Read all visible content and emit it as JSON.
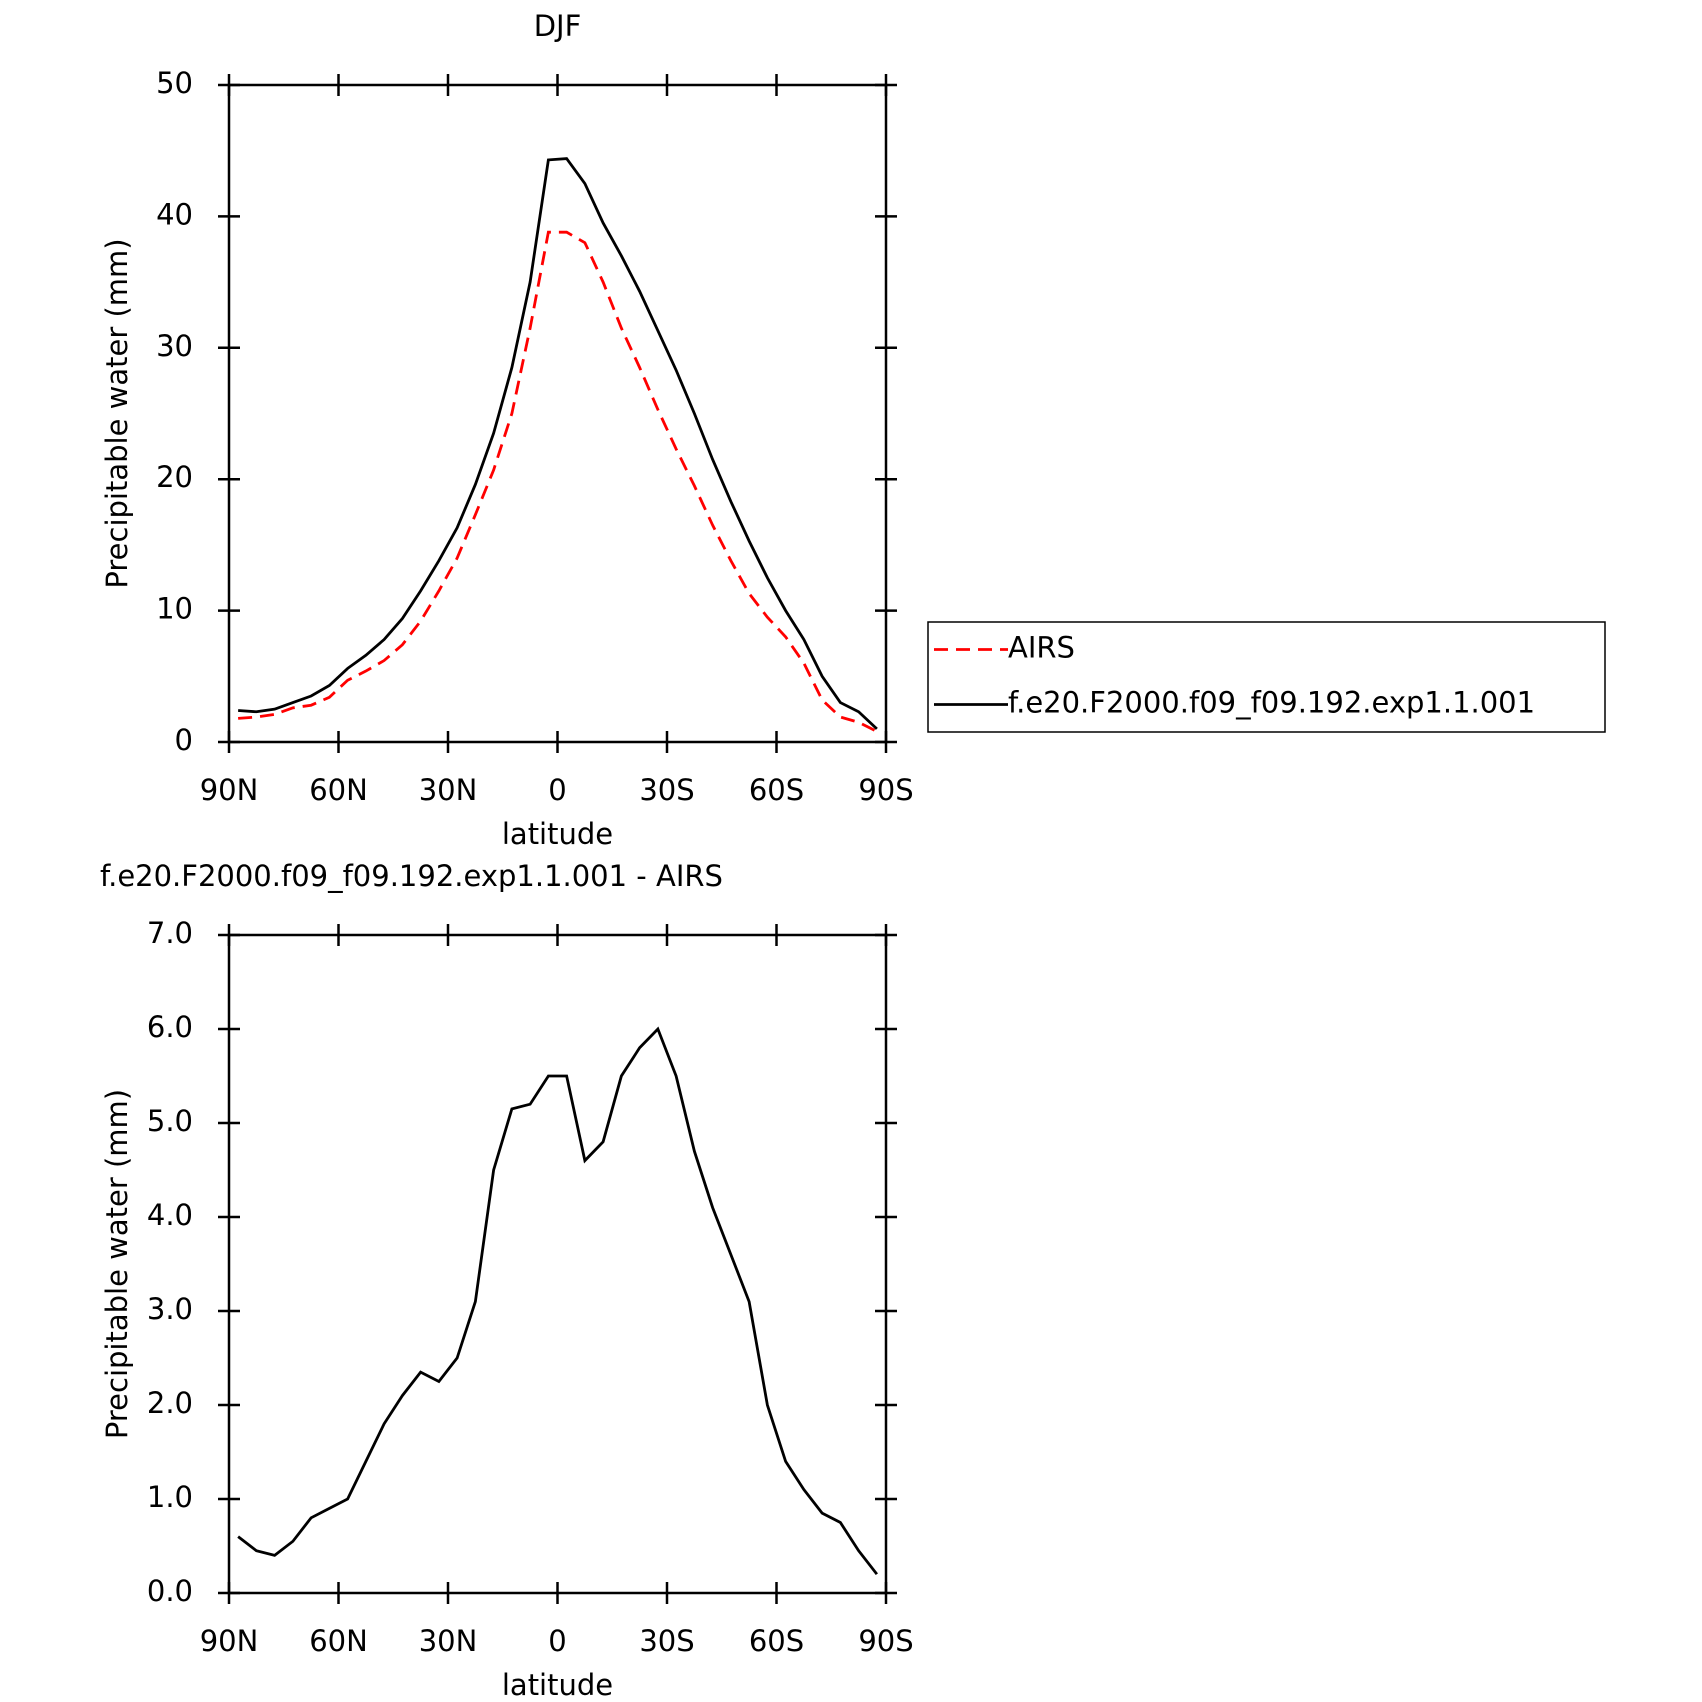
{
  "chart_data": [
    {
      "type": "line",
      "title": "DJF",
      "xlabel": "latitude",
      "ylabel": "Precipitable water (mm)",
      "x": [
        87.5,
        82.5,
        77.5,
        72.5,
        67.5,
        62.5,
        57.5,
        52.5,
        47.5,
        42.5,
        37.5,
        32.5,
        27.5,
        22.5,
        17.5,
        12.5,
        7.5,
        2.5,
        -2.5,
        -7.5,
        -12.5,
        -17.5,
        -22.5,
        -27.5,
        -32.5,
        -37.5,
        -42.5,
        -47.5,
        -52.5,
        -57.5,
        -62.5,
        -67.5,
        -72.5,
        -77.5,
        -82.5,
        -87.5
      ],
      "series": [
        {
          "name": "AIRS",
          "color": "#ff0000",
          "style": "dashed",
          "values": [
            1.8,
            1.9,
            2.1,
            2.6,
            2.8,
            3.4,
            4.7,
            5.4,
            6.2,
            7.4,
            9.2,
            11.5,
            14.0,
            17.3,
            20.7,
            25,
            31.5,
            38.8,
            38.8,
            38,
            35,
            31.5,
            28.5,
            25.3,
            22.3,
            19.5,
            16.5,
            13.8,
            11.3,
            9.5,
            8,
            6,
            3.2,
            1.9,
            1.5,
            0.8
          ]
        },
        {
          "name": "f.e20.F2000.f09_f09.192.exp1.1.001",
          "color": "#000000",
          "style": "solid",
          "values": [
            2.4,
            2.3,
            2.5,
            3.0,
            3.5,
            4.3,
            5.6,
            6.6,
            7.8,
            9.4,
            11.5,
            13.8,
            16.3,
            19.6,
            23.5,
            28.5,
            35,
            44.3,
            44.4,
            42.5,
            39.5,
            37,
            34.3,
            31.3,
            28.3,
            25,
            21.5,
            18.3,
            15.3,
            12.5,
            10,
            7.8,
            5,
            3,
            2.3,
            1.0
          ]
        }
      ],
      "xlim": [
        90,
        -90
      ],
      "xticks": [
        {
          "value": 90,
          "label": "90N"
        },
        {
          "value": 60,
          "label": "60N"
        },
        {
          "value": 30,
          "label": "30N"
        },
        0,
        {
          "value": -30,
          "label": "30S"
        },
        {
          "value": -60,
          "label": "60S"
        },
        {
          "value": -90,
          "label": "90S"
        }
      ],
      "ylim": [
        0,
        50
      ],
      "yticks": [
        0,
        10,
        20,
        30,
        40,
        50
      ],
      "legend": "right"
    },
    {
      "type": "line",
      "title": "f.e20.F2000.f09_f09.192.exp1.1.001 - AIRS",
      "xlabel": "latitude",
      "ylabel": "Precipitable water (mm)",
      "x": [
        87.5,
        82.5,
        77.5,
        72.5,
        67.5,
        62.5,
        57.5,
        52.5,
        47.5,
        42.5,
        37.5,
        32.5,
        27.5,
        22.5,
        17.5,
        12.5,
        7.5,
        2.5,
        -2.5,
        -7.5,
        -12.5,
        -17.5,
        -22.5,
        -27.5,
        -32.5,
        -37.5,
        -42.5,
        -47.5,
        -52.5,
        -57.5,
        -62.5,
        -67.5,
        -72.5,
        -77.5,
        -82.5,
        -87.5
      ],
      "color": "#000000",
      "values": [
        0.6,
        0.45,
        0.4,
        0.55,
        0.8,
        0.9,
        1.0,
        1.4,
        1.8,
        2.1,
        2.35,
        2.25,
        2.5,
        3.1,
        4.5,
        5.15,
        5.2,
        5.5,
        5.5,
        4.6,
        4.8,
        5.5,
        5.8,
        6.0,
        5.5,
        4.7,
        4.1,
        3.6,
        3.1,
        2.0,
        1.4,
        1.1,
        0.85,
        0.75,
        0.45,
        0.2
      ],
      "xlim": [
        90,
        -90
      ],
      "xticks": [
        {
          "value": 90,
          "label": "90N"
        },
        {
          "value": 60,
          "label": "60N"
        },
        {
          "value": 30,
          "label": "30N"
        },
        0,
        {
          "value": -30,
          "label": "30S"
        },
        {
          "value": -60,
          "label": "60S"
        },
        {
          "value": -90,
          "label": "90S"
        }
      ],
      "ylim": [
        0,
        7
      ],
      "yticks": [
        {
          "value": 0,
          "label": "0.0"
        },
        {
          "value": 1,
          "label": "1.0"
        },
        {
          "value": 2,
          "label": "2.0"
        },
        {
          "value": 3,
          "label": "3.0"
        },
        {
          "value": 4,
          "label": "4.0"
        },
        {
          "value": 5,
          "label": "5.0"
        },
        {
          "value": 6,
          "label": "6.0"
        },
        {
          "value": 7,
          "label": "7.0"
        }
      ]
    }
  ]
}
